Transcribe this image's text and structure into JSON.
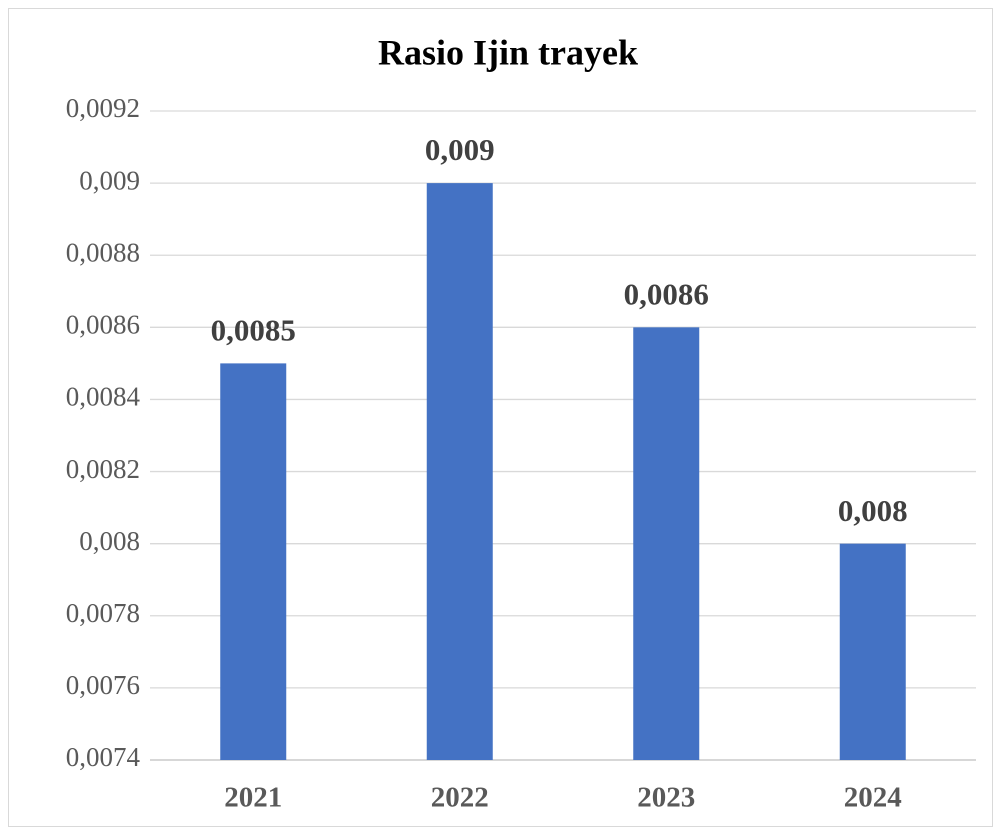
{
  "chart_data": {
    "type": "bar",
    "title": "Rasio Ijin trayek",
    "categories": [
      "2021",
      "2022",
      "2023",
      "2024"
    ],
    "values": [
      0.0085,
      0.009,
      0.0086,
      0.008
    ],
    "value_labels": [
      "0,0085",
      "0,009",
      "0,0086",
      "0,008"
    ],
    "color": "#4472c4",
    "ylim": [
      0.0074,
      0.0092
    ],
    "yticks": [
      {
        "value": 0.0074,
        "label": "0,0074"
      },
      {
        "value": 0.0076,
        "label": "0,0076"
      },
      {
        "value": 0.0078,
        "label": "0,0078"
      },
      {
        "value": 0.008,
        "label": "0,008"
      },
      {
        "value": 0.0082,
        "label": "0,0082"
      },
      {
        "value": 0.0084,
        "label": "0,0084"
      },
      {
        "value": 0.0086,
        "label": "0,0086"
      },
      {
        "value": 0.0088,
        "label": "0,0088"
      },
      {
        "value": 0.009,
        "label": "0,009"
      },
      {
        "value": 0.0092,
        "label": "0,0092"
      }
    ],
    "grid": true
  }
}
